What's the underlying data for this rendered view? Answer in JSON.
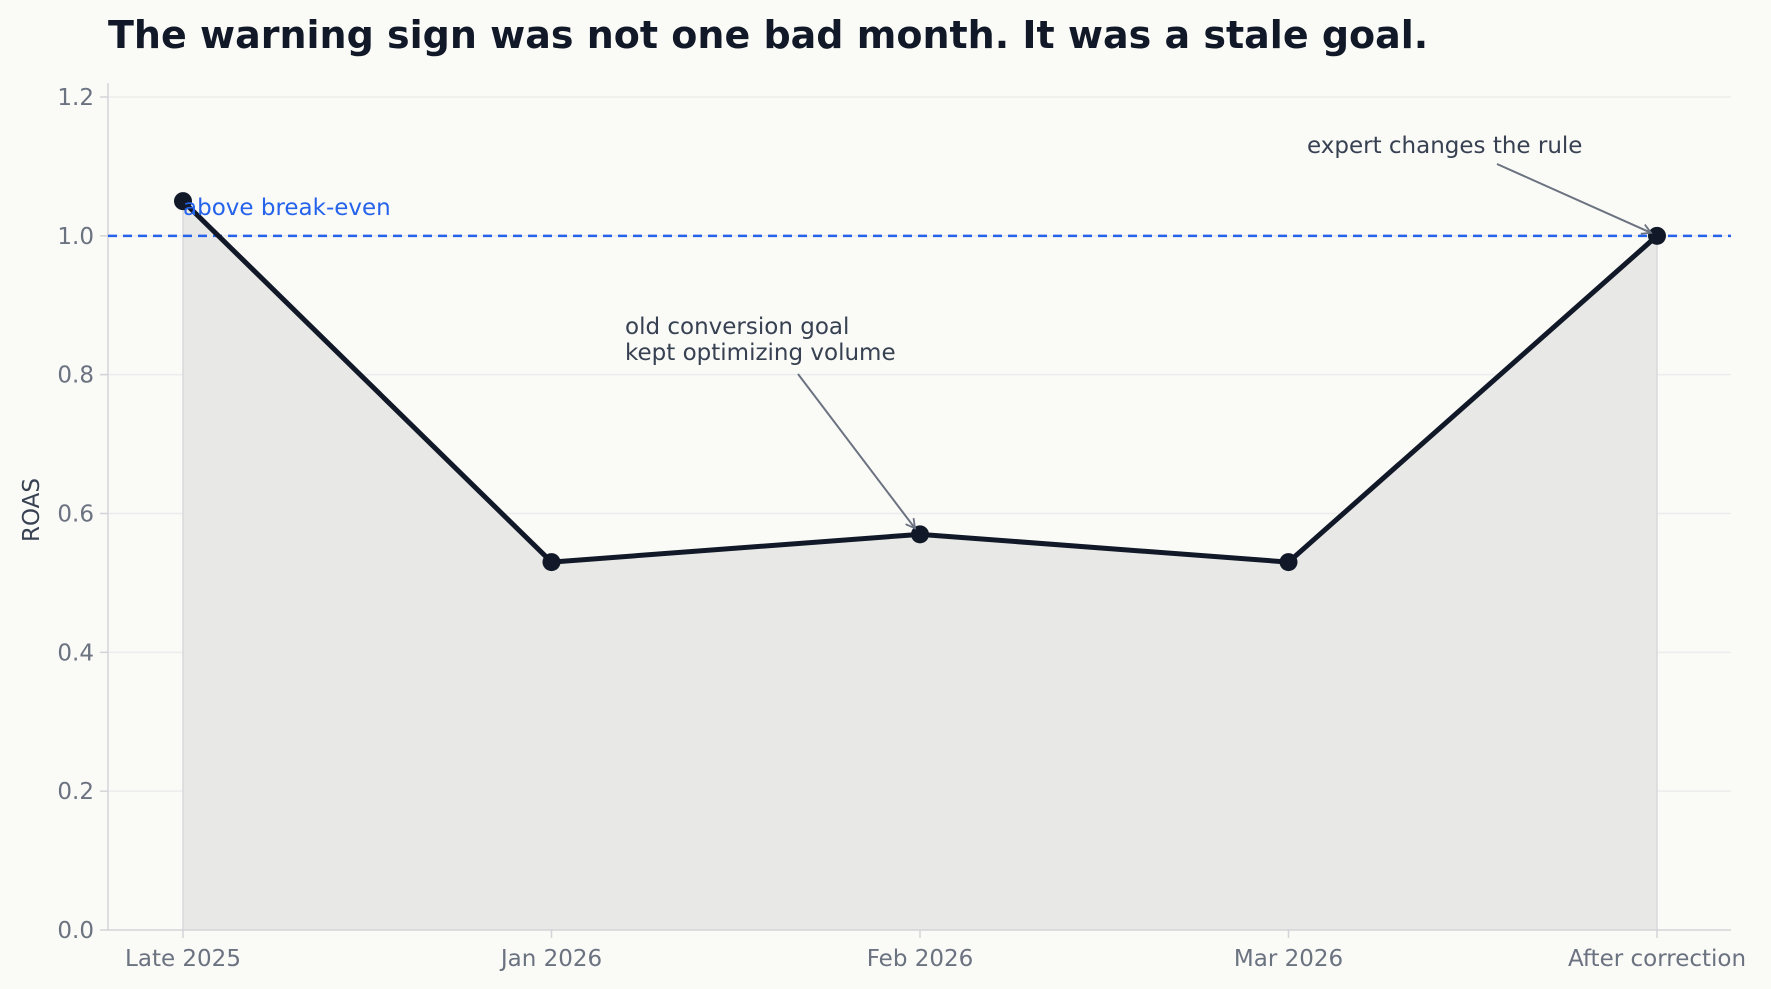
{
  "chart_data": {
    "type": "line",
    "title": "The warning sign was not one bad month. It was a stale goal.",
    "xlabel": "",
    "ylabel": "ROAS",
    "categories": [
      "Late 2025",
      "Jan 2026",
      "Feb 2026",
      "Mar 2026",
      "After correction"
    ],
    "series": [
      {
        "values": [
          1.05,
          0.53,
          0.57,
          0.53,
          1.0
        ]
      }
    ],
    "ylim": [
      0,
      1.2
    ],
    "yticks": [
      "0.0",
      "0.2",
      "0.4",
      "0.6",
      "0.8",
      "1.0",
      "1.2"
    ],
    "grid": "horizontal",
    "fill_under_line": true,
    "reference_line": {
      "value": 1.0,
      "label": "above break-even",
      "style": "dashed"
    },
    "annotations": [
      {
        "lines": [
          "old conversion goal",
          "kept optimizing volume"
        ],
        "category": "Feb 2026",
        "value": 0.57
      },
      {
        "lines": [
          "expert changes the rule"
        ],
        "category": "After correction",
        "value": 1.0
      }
    ]
  },
  "colors": {
    "background": "#fafaf7",
    "line": "#111827",
    "area_fill": "#e8e8e6",
    "reference_line": "#2563eb",
    "grid": "#ececec",
    "axis": "#d4d4d8",
    "tick_text": "#6b7280",
    "annotation_arrow": "#6b7280"
  }
}
